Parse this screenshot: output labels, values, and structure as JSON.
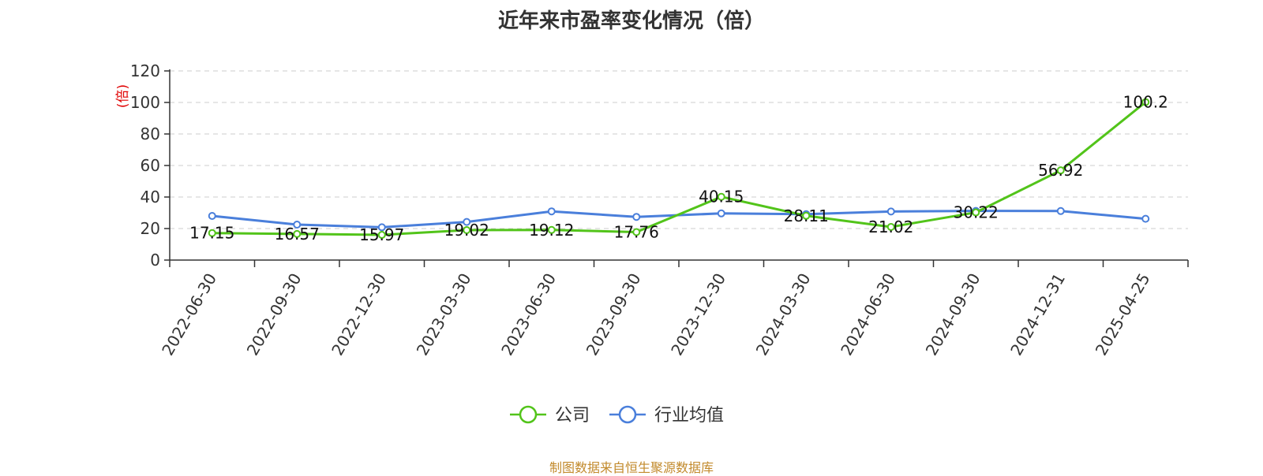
{
  "chart_data": {
    "type": "line",
    "title": "近年来市盈率变化情况（倍）",
    "ylabel": "(倍)",
    "categories": [
      "2022-06-30",
      "2022-09-30",
      "2022-12-30",
      "2023-03-30",
      "2023-06-30",
      "2023-09-30",
      "2023-12-30",
      "2024-03-30",
      "2024-06-30",
      "2024-09-30",
      "2024-12-31",
      "2025-04-25"
    ],
    "ylim": [
      0,
      120
    ],
    "yticks": [
      "0",
      "20",
      "40",
      "60",
      "80",
      "100",
      "120"
    ],
    "grid": true,
    "legend_position": "bottom",
    "series": [
      {
        "name": "公司",
        "color": "#52c41a",
        "values": [
          17.15,
          16.57,
          15.97,
          19.02,
          19.12,
          17.76,
          40.15,
          28.11,
          21.02,
          30.22,
          56.92,
          100.2
        ],
        "labels": [
          "17.15",
          "16.57",
          "15.97",
          "19.02",
          "19.12",
          "17.76",
          "40.15",
          "28.11",
          "21.02",
          "30.22",
          "56.92",
          "100.2"
        ]
      },
      {
        "name": "行业均值",
        "color": "#4a7fdb",
        "values": [
          28.0,
          22.5,
          20.8,
          24.2,
          30.9,
          27.4,
          29.6,
          29.1,
          30.8,
          31.2,
          31.1,
          26.2
        ]
      }
    ],
    "unit_color": "#e00000"
  },
  "source_note": "制图数据来自恒生聚源数据库"
}
